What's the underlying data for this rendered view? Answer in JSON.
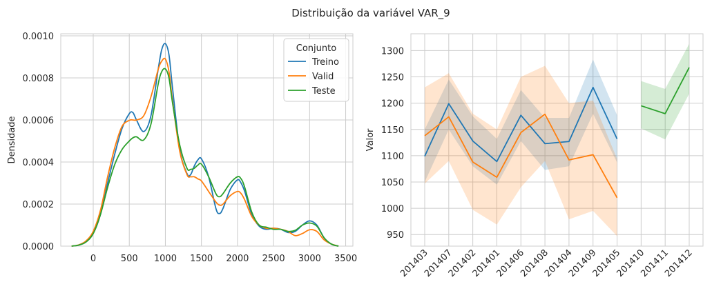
{
  "figure_title": "Distribuição da variável VAR_9",
  "chart_data": [
    {
      "type": "line",
      "subtype": "kde",
      "title": "",
      "xlabel": "",
      "ylabel": "Densidade",
      "xlim": [
        -450,
        3600
      ],
      "ylim": [
        0,
        0.00101
      ],
      "xticks": [
        0,
        500,
        1000,
        1500,
        2000,
        2500,
        3000,
        3500
      ],
      "yticks": [
        0,
        0.0002,
        0.0004,
        0.0006,
        0.0008,
        0.001
      ],
      "ytick_labels": [
        "0.0000",
        "0.0002",
        "0.0004",
        "0.0006",
        "0.0008",
        "0.0010"
      ],
      "grid": true,
      "legend": {
        "title": "Conjunto",
        "placement": "top-right"
      },
      "series": [
        {
          "name": "Treino",
          "color": "#1f77b4",
          "x": [
            -300,
            -200,
            -100,
            0,
            100,
            200,
            300,
            400,
            500,
            550,
            600,
            700,
            800,
            900,
            950,
            1000,
            1050,
            1100,
            1200,
            1300,
            1350,
            1400,
            1450,
            1500,
            1600,
            1700,
            1750,
            1800,
            1900,
            2000,
            2050,
            2100,
            2200,
            2300,
            2400,
            2500,
            2600,
            2700,
            2800,
            2900,
            3000,
            3100,
            3200,
            3300,
            3400
          ],
          "y": [
            0,
            5e-06,
            2e-05,
            6e-05,
            0.00015,
            0.0003,
            0.00044,
            0.00056,
            0.00063,
            0.000635,
            0.0006,
            0.000545,
            0.00062,
            0.00084,
            0.000935,
            0.000963,
            0.00091,
            0.00075,
            0.00046,
            0.000345,
            0.00034,
            0.00038,
            0.00041,
            0.000415,
            0.00033,
            0.00018,
            0.000155,
            0.00018,
            0.00027,
            0.000315,
            0.0003,
            0.00026,
            0.00015,
            9.5e-05,
            8e-05,
            8.5e-05,
            8e-05,
            6.5e-05,
            7e-05,
            0.0001,
            0.00012,
            0.0001,
            4e-05,
            1e-05,
            0
          ]
        },
        {
          "name": "Valid",
          "color": "#ff7f0e",
          "x": [
            -300,
            -200,
            -100,
            0,
            100,
            200,
            300,
            400,
            500,
            550,
            600,
            700,
            800,
            900,
            950,
            1000,
            1050,
            1100,
            1200,
            1300,
            1350,
            1400,
            1450,
            1500,
            1600,
            1700,
            1750,
            1800,
            1900,
            2000,
            2050,
            2100,
            2200,
            2300,
            2400,
            2500,
            2600,
            2700,
            2800,
            2900,
            3000,
            3100,
            3200,
            3300,
            3400
          ],
          "y": [
            0,
            6e-06,
            2.5e-05,
            7e-05,
            0.00017,
            0.00033,
            0.00047,
            0.00057,
            0.000598,
            0.0006,
            0.0006,
            0.00062,
            0.00071,
            0.00084,
            0.00088,
            0.00089,
            0.00083,
            0.00069,
            0.00045,
            0.00034,
            0.00033,
            0.00033,
            0.00032,
            0.00031,
            0.00026,
            0.00021,
            0.000195,
            0.0002,
            0.00024,
            0.00026,
            0.00025,
            0.00022,
            0.00014,
            0.0001,
            8.5e-05,
            8.5e-05,
            8e-05,
            7e-05,
            5e-05,
            6e-05,
            7.8e-05,
            7e-05,
            3e-05,
            1e-05,
            0
          ]
        },
        {
          "name": "Teste",
          "color": "#2ca02c",
          "x": [
            -300,
            -200,
            -100,
            0,
            100,
            200,
            300,
            400,
            500,
            550,
            600,
            700,
            800,
            900,
            950,
            1000,
            1050,
            1100,
            1200,
            1300,
            1350,
            1400,
            1450,
            1500,
            1600,
            1700,
            1750,
            1800,
            1900,
            2000,
            2050,
            2100,
            2200,
            2300,
            2400,
            2500,
            2600,
            2700,
            2800,
            2900,
            3000,
            3100,
            3200,
            3300,
            3400
          ],
          "y": [
            0,
            5e-06,
            2e-05,
            6e-05,
            0.00015,
            0.00028,
            0.00039,
            0.00046,
            0.0005,
            0.000515,
            0.00052,
            0.000505,
            0.00058,
            0.00077,
            0.00083,
            0.000843,
            0.0008,
            0.00068,
            0.00048,
            0.00037,
            0.000365,
            0.00037,
            0.000385,
            0.00039,
            0.00033,
            0.00025,
            0.000235,
            0.00025,
            0.0003,
            0.00033,
            0.00032,
            0.00028,
            0.00016,
            0.0001,
            9e-05,
            8e-05,
            8e-05,
            7e-05,
            7.5e-05,
            0.0001,
            0.00011,
            9.5e-05,
            4e-05,
            1e-05,
            0
          ]
        }
      ]
    },
    {
      "type": "line",
      "subtype": "line-with-confidence-band",
      "title": "",
      "xlabel": "",
      "ylabel": "Valor",
      "categories": [
        "201403",
        "201407",
        "201402",
        "201401",
        "201406",
        "201408",
        "201404",
        "201409",
        "201405",
        "201410",
        "201411",
        "201412"
      ],
      "ylim": [
        928,
        1332
      ],
      "yticks": [
        950,
        1000,
        1050,
        1100,
        1150,
        1200,
        1250,
        1300
      ],
      "grid": true,
      "series": [
        {
          "name": "Treino",
          "color": "#1f77b4",
          "values": [
            1099,
            1199,
            1128,
            1089,
            1177,
            1123,
            1127,
            1230,
            1132,
            null,
            null,
            null
          ],
          "lower": [
            1050,
            1150,
            1080,
            1045,
            1128,
            1073,
            1080,
            1180,
            1087,
            null,
            null,
            null
          ],
          "upper": [
            1150,
            1245,
            1175,
            1132,
            1225,
            1172,
            1172,
            1283,
            1177,
            null,
            null,
            null
          ]
        },
        {
          "name": "Valid",
          "color": "#ff7f0e",
          "values": [
            1138,
            1174,
            1088,
            1059,
            1144,
            1179,
            1092,
            1102,
            1020,
            null,
            null,
            null
          ],
          "lower": [
            1047,
            1090,
            997,
            969,
            1040,
            1090,
            979,
            995,
            947,
            null,
            null,
            null
          ],
          "upper": [
            1230,
            1257,
            1180,
            1150,
            1250,
            1271,
            1200,
            1205,
            1094,
            null,
            null,
            null
          ]
        },
        {
          "name": "Teste",
          "color": "#2ca02c",
          "values": [
            null,
            null,
            null,
            null,
            null,
            null,
            null,
            null,
            null,
            1195,
            1180,
            1268
          ],
          "lower": [
            null,
            null,
            null,
            null,
            null,
            null,
            null,
            null,
            null,
            1152,
            1131,
            1218
          ],
          "upper": [
            null,
            null,
            null,
            null,
            null,
            null,
            null,
            null,
            null,
            1242,
            1227,
            1313
          ]
        }
      ]
    }
  ]
}
